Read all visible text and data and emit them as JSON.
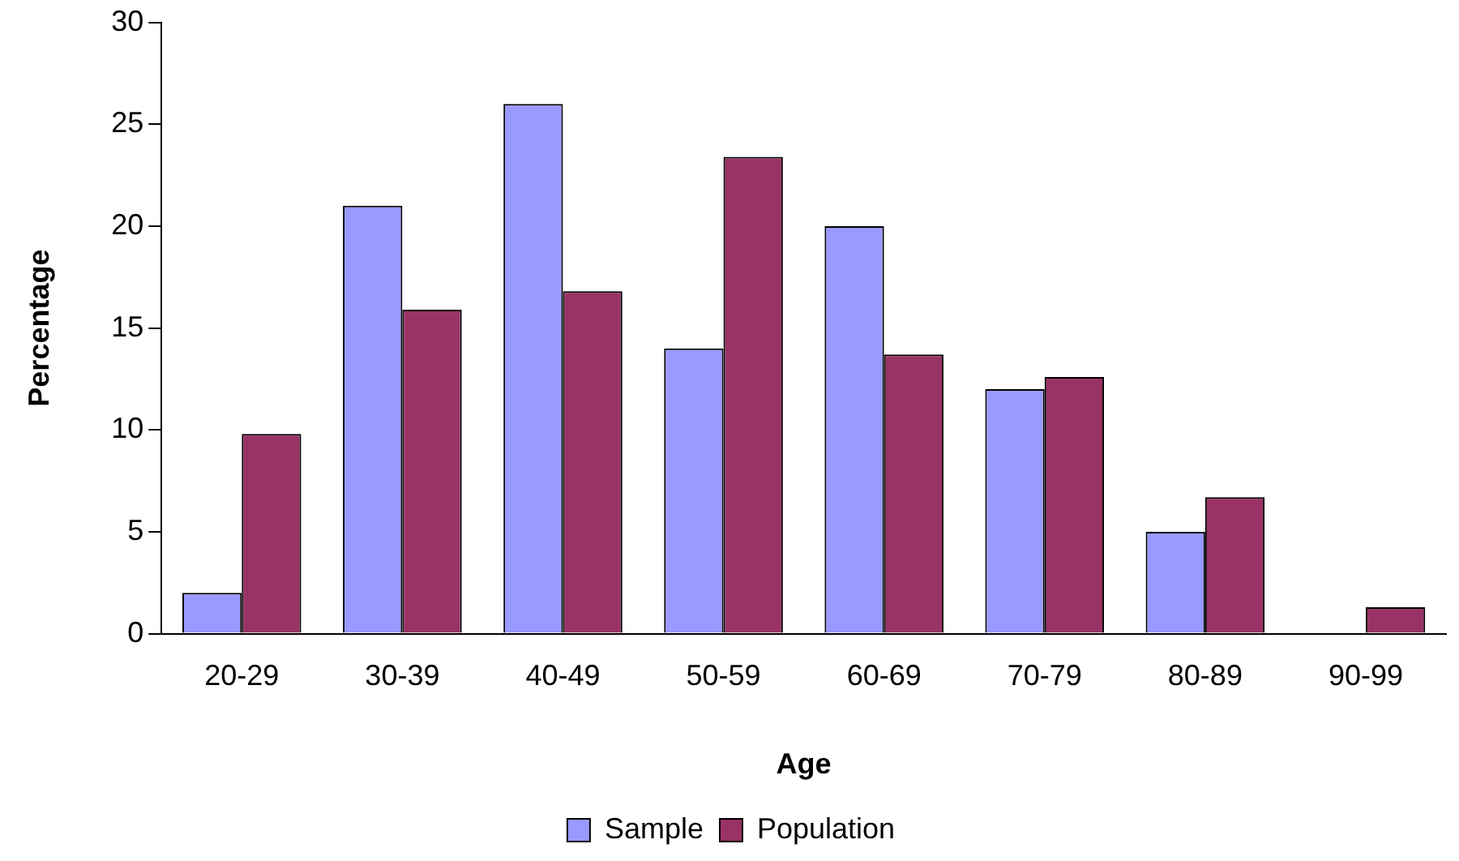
{
  "chart_data": {
    "type": "bar",
    "xlabel": "Age",
    "ylabel": "Percentage",
    "categories": [
      "20-29",
      "30-39",
      "40-49",
      "50-59",
      "60-69",
      "70-79",
      "80-89",
      "90-99"
    ],
    "series": [
      {
        "name": "Sample",
        "color": "#9999ff",
        "values": [
          2,
          21,
          26,
          14,
          20,
          12,
          5,
          0
        ]
      },
      {
        "name": "Population",
        "color": "#993366",
        "values": [
          9.8,
          15.9,
          16.8,
          23.4,
          13.7,
          12.6,
          6.7,
          1.3
        ]
      }
    ],
    "ylim": [
      0,
      30
    ],
    "yticks": [
      0,
      5,
      10,
      15,
      20,
      25,
      30
    ],
    "grid": false,
    "legend": "bottom"
  }
}
